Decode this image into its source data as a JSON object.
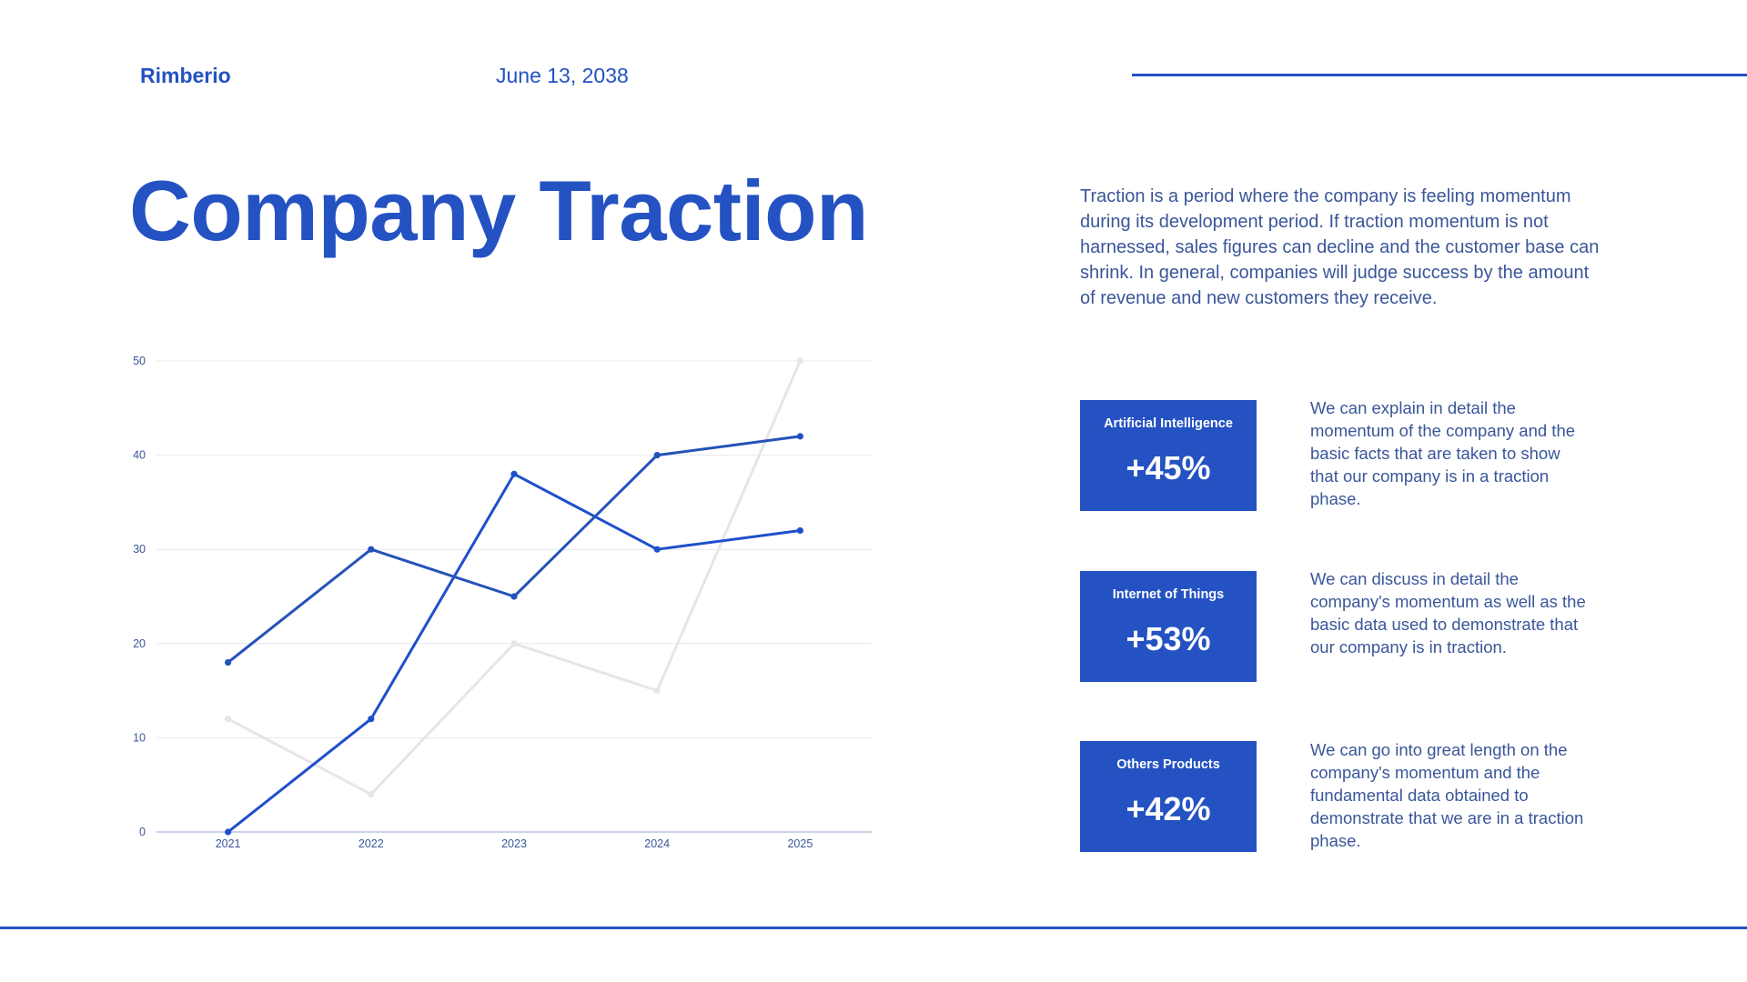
{
  "header": {
    "brand": "Rimberio",
    "date": "June 13, 2038"
  },
  "title": "Company Traction",
  "intro": "Traction is a period where the company is feeling momentum during its development period. If traction momentum is not harnessed, sales figures can decline and the customer base can shrink. In general, companies will judge success by the amount of revenue and new customers they receive.",
  "cards": [
    {
      "label": "Artificial Intelligence",
      "value": "+45%",
      "description": "We can explain in detail the momentum of the company and the basic facts that are taken to show that our company is in a traction phase."
    },
    {
      "label": "Internet of Things",
      "value": "+53%",
      "description": "We can discuss in detail the company's momentum as well as the basic data used to demonstrate that our company is in traction."
    },
    {
      "label": "Others Products",
      "value": "+42%",
      "description": "We can go into great length on the company's momentum and the fundamental data obtained to demonstrate that we are in a traction phase."
    }
  ],
  "colors": {
    "accent": "#2452c2"
  },
  "chart_data": {
    "type": "line",
    "categories": [
      "2021",
      "2022",
      "2023",
      "2024",
      "2025"
    ],
    "ylim": [
      0,
      50
    ],
    "yticks": [
      0,
      10,
      20,
      30,
      40,
      50
    ],
    "grid": true,
    "legend": "none",
    "title": "",
    "xlabel": "",
    "ylabel": "",
    "series": [
      {
        "values": [
          18,
          30,
          25,
          40,
          42
        ],
        "color": "#2452b8"
      },
      {
        "values": [
          0,
          12,
          38,
          30,
          32
        ],
        "color": "#1f4fcc"
      },
      {
        "values": [
          12,
          4,
          20,
          15,
          50
        ],
        "color": "#e6e6e6"
      }
    ]
  }
}
